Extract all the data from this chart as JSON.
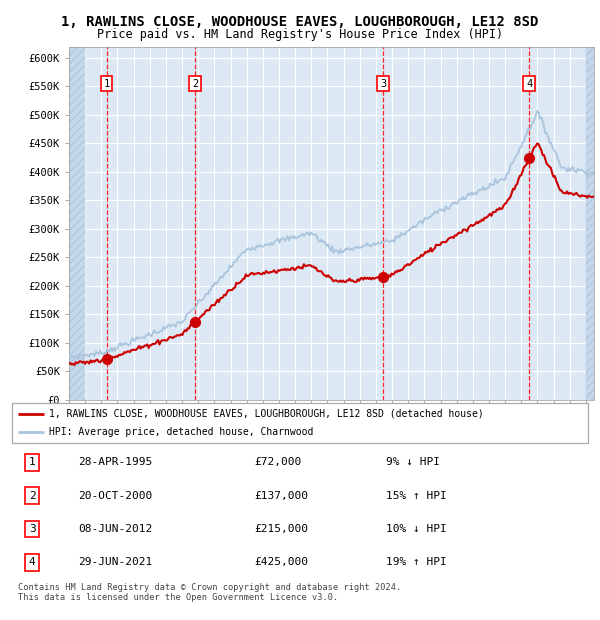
{
  "title": "1, RAWLINS CLOSE, WOODHOUSE EAVES, LOUGHBOROUGH, LE12 8SD",
  "subtitle": "Price paid vs. HM Land Registry's House Price Index (HPI)",
  "title_fontsize": 10,
  "subtitle_fontsize": 8.5,
  "xlim_start": 1993.0,
  "xlim_end": 2025.5,
  "ylim_min": 0,
  "ylim_max": 620000,
  "yticks": [
    0,
    50000,
    100000,
    150000,
    200000,
    250000,
    300000,
    350000,
    400000,
    450000,
    500000,
    550000,
    600000
  ],
  "ytick_labels": [
    "£0",
    "£50K",
    "£100K",
    "£150K",
    "£200K",
    "£250K",
    "£300K",
    "£350K",
    "£400K",
    "£450K",
    "£500K",
    "£550K",
    "£600K"
  ],
  "hpi_color": "#aac4dd",
  "price_color": "#cc0000",
  "marker_color": "#cc0000",
  "grid_color": "#ffffff",
  "bg_color": "#dce9f5",
  "sale_points": [
    {
      "year": 1995.33,
      "price": 72000,
      "label": "1"
    },
    {
      "year": 2000.8,
      "price": 137000,
      "label": "2"
    },
    {
      "year": 2012.44,
      "price": 215000,
      "label": "3"
    },
    {
      "year": 2021.49,
      "price": 425000,
      "label": "4"
    }
  ],
  "legend_line1": "1, RAWLINS CLOSE, WOODHOUSE EAVES, LOUGHBOROUGH, LE12 8SD (detached house)",
  "legend_line2": "HPI: Average price, detached house, Charnwood",
  "table_rows": [
    {
      "num": "1",
      "date": "28-APR-1995",
      "price": "£72,000",
      "hpi": "9% ↓ HPI"
    },
    {
      "num": "2",
      "date": "20-OCT-2000",
      "price": "£137,000",
      "hpi": "15% ↑ HPI"
    },
    {
      "num": "3",
      "date": "08-JUN-2012",
      "price": "£215,000",
      "hpi": "10% ↓ HPI"
    },
    {
      "num": "4",
      "date": "29-JUN-2021",
      "price": "£425,000",
      "hpi": "19% ↑ HPI"
    }
  ],
  "footnote": "Contains HM Land Registry data © Crown copyright and database right 2024.\nThis data is licensed under the Open Government Licence v3.0."
}
